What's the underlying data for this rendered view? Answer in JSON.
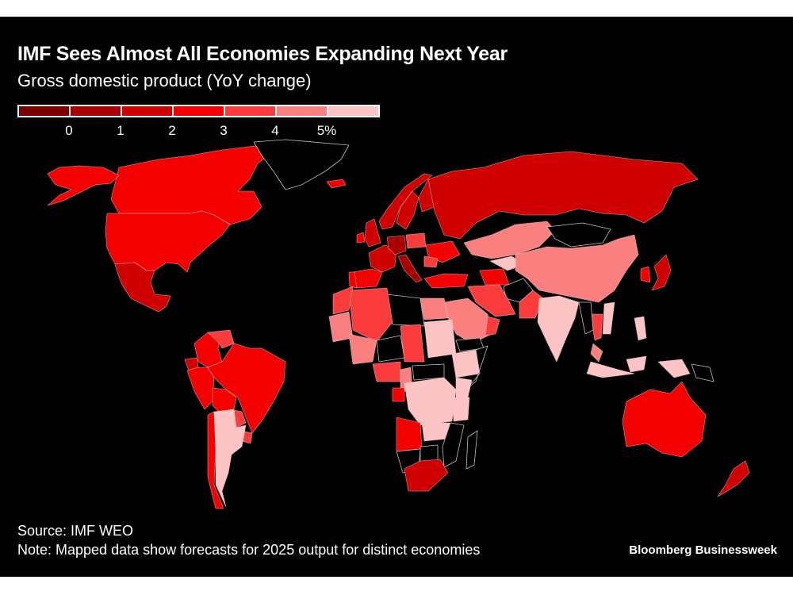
{
  "header": {
    "title": "IMF Sees Almost All Economies Expanding Next Year",
    "subtitle": "Gross domestic product (YoY change)"
  },
  "legend": {
    "bins": [
      {
        "color": "#7a0000",
        "range": "< 0"
      },
      {
        "color": "#a80000",
        "range": "0 to 1"
      },
      {
        "color": "#cf0000",
        "range": "1 to 2"
      },
      {
        "color": "#f50000",
        "range": "2 to 3"
      },
      {
        "color": "#fa3c3c",
        "range": "3 to 4"
      },
      {
        "color": "#fa8080",
        "range": "4 to 5"
      },
      {
        "color": "#fcc4c4",
        "range": "> 5"
      }
    ],
    "ticks": [
      "0",
      "1",
      "2",
      "3",
      "4",
      "5%"
    ]
  },
  "chart_data": {
    "type": "choropleth",
    "title": "IMF Sees Almost All Economies Expanding Next Year",
    "subtitle": "Gross domestic product (YoY change)",
    "unit": "% YoY",
    "no_data_color": "#000000",
    "regions": [
      {
        "name": "Canada",
        "bin": 3
      },
      {
        "name": "United States",
        "bin": 3
      },
      {
        "name": "Alaska",
        "bin": 3
      },
      {
        "name": "Mexico",
        "bin": 2
      },
      {
        "name": "Greenland",
        "bin": null
      },
      {
        "name": "Iceland",
        "bin": 3
      },
      {
        "name": "Colombia",
        "bin": 3
      },
      {
        "name": "Venezuela",
        "bin": 4
      },
      {
        "name": "Ecuador",
        "bin": 2
      },
      {
        "name": "Peru",
        "bin": 3
      },
      {
        "name": "Brazil",
        "bin": 3
      },
      {
        "name": "Bolivia",
        "bin": 3
      },
      {
        "name": "Paraguay",
        "bin": 4
      },
      {
        "name": "Uruguay",
        "bin": 4
      },
      {
        "name": "Chile",
        "bin": 3
      },
      {
        "name": "Argentina",
        "bin": 6
      },
      {
        "name": "Guyana",
        "bin": null
      },
      {
        "name": "United Kingdom",
        "bin": 2
      },
      {
        "name": "Ireland",
        "bin": 3
      },
      {
        "name": "Norway",
        "bin": 2
      },
      {
        "name": "Sweden",
        "bin": 2
      },
      {
        "name": "Finland",
        "bin": 2
      },
      {
        "name": "France",
        "bin": 2
      },
      {
        "name": "Spain",
        "bin": 3
      },
      {
        "name": "Portugal",
        "bin": 3
      },
      {
        "name": "Germany",
        "bin": 1
      },
      {
        "name": "Italy",
        "bin": 1
      },
      {
        "name": "Poland",
        "bin": 4
      },
      {
        "name": "Ukraine",
        "bin": 3
      },
      {
        "name": "Romania",
        "bin": 4
      },
      {
        "name": "Turkey",
        "bin": 3
      },
      {
        "name": "Russia",
        "bin": 2
      },
      {
        "name": "Kazakhstan",
        "bin": 5
      },
      {
        "name": "Uzbekistan",
        "bin": 6
      },
      {
        "name": "Turkmenistan",
        "bin": 3
      },
      {
        "name": "Mongolia",
        "bin": null
      },
      {
        "name": "China",
        "bin": 5
      },
      {
        "name": "Japan",
        "bin": 2
      },
      {
        "name": "South Korea",
        "bin": 3
      },
      {
        "name": "Afghanistan",
        "bin": null
      },
      {
        "name": "Iran",
        "bin": 4
      },
      {
        "name": "Pakistan",
        "bin": 4
      },
      {
        "name": "India",
        "bin": 6
      },
      {
        "name": "Saudi Arabia",
        "bin": 5
      },
      {
        "name": "Oman",
        "bin": 4
      },
      {
        "name": "Yemen",
        "bin": null
      },
      {
        "name": "Egypt",
        "bin": 5
      },
      {
        "name": "Libya",
        "bin": null
      },
      {
        "name": "Algeria",
        "bin": 4
      },
      {
        "name": "Morocco",
        "bin": 4
      },
      {
        "name": "Mauritania",
        "bin": 5
      },
      {
        "name": "Mali",
        "bin": 5
      },
      {
        "name": "Niger",
        "bin": null
      },
      {
        "name": "Chad",
        "bin": 4
      },
      {
        "name": "Sudan",
        "bin": 6
      },
      {
        "name": "Ethiopia",
        "bin": 6
      },
      {
        "name": "Somalia",
        "bin": null
      },
      {
        "name": "Nigeria",
        "bin": 4
      },
      {
        "name": "Cameroon",
        "bin": 5
      },
      {
        "name": "Central African Rep.",
        "bin": null
      },
      {
        "name": "DR Congo",
        "bin": 6
      },
      {
        "name": "Gabon",
        "bin": 3
      },
      {
        "name": "Kenya",
        "bin": 6
      },
      {
        "name": "Tanzania",
        "bin": 6
      },
      {
        "name": "Angola",
        "bin": 3
      },
      {
        "name": "Zambia",
        "bin": 6
      },
      {
        "name": "Namibia",
        "bin": null
      },
      {
        "name": "Botswana",
        "bin": null
      },
      {
        "name": "Mozambique",
        "bin": null
      },
      {
        "name": "South Africa",
        "bin": 2
      },
      {
        "name": "Madagascar",
        "bin": null
      },
      {
        "name": "Thailand",
        "bin": 4
      },
      {
        "name": "Myanmar",
        "bin": null
      },
      {
        "name": "Vietnam",
        "bin": 6
      },
      {
        "name": "Malaysia",
        "bin": 5
      },
      {
        "name": "Indonesia",
        "bin": 6
      },
      {
        "name": "Philippines",
        "bin": 6
      },
      {
        "name": "Papua New Guinea",
        "bin": null
      },
      {
        "name": "Australia",
        "bin": 3
      },
      {
        "name": "New Zealand",
        "bin": 2
      }
    ]
  },
  "footer": {
    "source": "Source: IMF WEO",
    "note": "Note: Mapped data show forecasts for 2025 output for distinct economies",
    "brand": "Bloomberg Businessweek"
  }
}
